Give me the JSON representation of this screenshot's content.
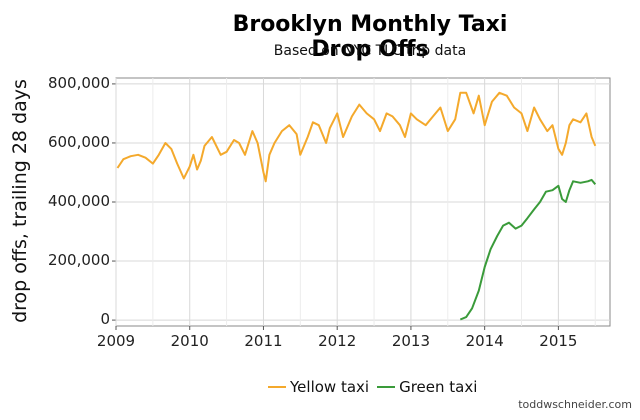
{
  "chart_data": {
    "type": "line",
    "title": "Brooklyn Monthly Taxi Drop Offs",
    "subtitle": "Based on NYC TLC trip data",
    "xlabel": "",
    "ylabel": "drop offs, trailing 28 days",
    "xlim": [
      2009.0,
      2015.7
    ],
    "ylim": [
      -20000,
      820000
    ],
    "xticks": [
      "2009",
      "2010",
      "2011",
      "2012",
      "2013",
      "2014",
      "2015"
    ],
    "yticks": [
      "0",
      "200,000",
      "400,000",
      "600,000",
      "800,000"
    ],
    "grid": true,
    "legend_position": "bottom",
    "series": [
      {
        "name": "Yellow taxi",
        "color": "#F4A92C",
        "x": [
          2009.02,
          2009.1,
          2009.2,
          2009.3,
          2009.4,
          2009.5,
          2009.58,
          2009.67,
          2009.75,
          2009.83,
          2009.92,
          2010.0,
          2010.05,
          2010.1,
          2010.15,
          2010.2,
          2010.3,
          2010.42,
          2010.5,
          2010.6,
          2010.67,
          2010.75,
          2010.85,
          2010.92,
          2011.0,
          2011.03,
          2011.08,
          2011.15,
          2011.25,
          2011.35,
          2011.45,
          2011.5,
          2011.6,
          2011.67,
          2011.75,
          2011.85,
          2011.9,
          2012.0,
          2012.08,
          2012.2,
          2012.3,
          2012.4,
          2012.5,
          2012.58,
          2012.67,
          2012.75,
          2012.85,
          2012.92,
          2013.0,
          2013.08,
          2013.2,
          2013.3,
          2013.4,
          2013.5,
          2013.6,
          2013.67,
          2013.75,
          2013.85,
          2013.92,
          2014.0,
          2014.05,
          2014.1,
          2014.2,
          2014.3,
          2014.4,
          2014.5,
          2014.58,
          2014.67,
          2014.75,
          2014.85,
          2014.92,
          2015.0,
          2015.05,
          2015.1,
          2015.15,
          2015.2,
          2015.3,
          2015.38,
          2015.45,
          2015.5
        ],
        "y": [
          515000,
          545000,
          555000,
          560000,
          550000,
          530000,
          560000,
          600000,
          580000,
          530000,
          480000,
          520000,
          560000,
          510000,
          540000,
          590000,
          620000,
          560000,
          570000,
          610000,
          600000,
          560000,
          640000,
          600000,
          500000,
          470000,
          560000,
          600000,
          640000,
          660000,
          630000,
          560000,
          620000,
          670000,
          660000,
          600000,
          650000,
          700000,
          620000,
          690000,
          730000,
          700000,
          680000,
          640000,
          700000,
          690000,
          660000,
          620000,
          700000,
          680000,
          660000,
          690000,
          720000,
          640000,
          680000,
          770000,
          770000,
          700000,
          760000,
          660000,
          700000,
          740000,
          770000,
          760000,
          720000,
          700000,
          640000,
          720000,
          680000,
          640000,
          660000,
          580000,
          560000,
          600000,
          660000,
          680000,
          670000,
          700000,
          620000,
          590000
        ]
      },
      {
        "name": "Green taxi",
        "color": "#3A9B3A",
        "x": [
          2013.67,
          2013.75,
          2013.83,
          2013.92,
          2014.0,
          2014.08,
          2014.17,
          2014.25,
          2014.33,
          2014.42,
          2014.5,
          2014.58,
          2014.67,
          2014.75,
          2014.83,
          2014.92,
          2015.0,
          2015.05,
          2015.1,
          2015.15,
          2015.2,
          2015.3,
          2015.4,
          2015.45,
          2015.5
        ],
        "y": [
          2000,
          10000,
          40000,
          100000,
          180000,
          240000,
          285000,
          320000,
          330000,
          310000,
          320000,
          345000,
          375000,
          400000,
          435000,
          440000,
          455000,
          410000,
          400000,
          440000,
          470000,
          465000,
          470000,
          475000,
          460000
        ]
      }
    ]
  },
  "credit": "toddwschneider.com"
}
